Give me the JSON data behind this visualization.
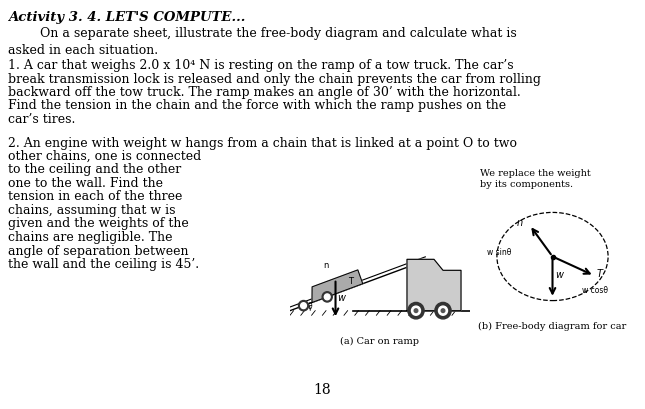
{
  "bg_color": "#f5f5f0",
  "content_bg": "#ffffff",
  "title_bold": "Activity 3. 4. LET'S COMPUTE...",
  "intro": "        On a separate sheet, illustrate the free-body diagram and calculate what is\nasked in each situation.",
  "problem1_line1": "1. A car that weighs 2.0 x 10⁴ N is resting on the ramp of a tow truck. The car’s",
  "problem1_line2": "break transmission lock is released and only the chain prevents the car from rolling",
  "problem1_line3": "backward off the tow truck. The ramp makes an angle of 30’ with the horizontal.",
  "problem1_line4": "Find the tension in the chain and the force with which the ramp pushes on the",
  "problem1_line5": "car’s tires.",
  "problem2_line1": "2. An engine with weight w hangs from a chain that is linked at a point O to two",
  "problem2_line2": "other chains, one is connected",
  "problem2_line3": "to the ceiling and the other",
  "problem2_line4": "one to the wall. Find the",
  "problem2_line5": "tension in each of the three",
  "problem2_line6": "chains, assuming that w is",
  "problem2_line7": "given and the weights of the",
  "problem2_line8": "chains are negligible. The",
  "problem2_line9": "angle of separation between",
  "problem2_line10": "the wall and the ceiling is 45’.",
  "caption_a": "(a) Car on ramp",
  "caption_b": "(b) Free-body diagram for car",
  "note_b_line1": "We replace the weight",
  "note_b_line2": "by its components.",
  "page_number": "18",
  "font_family": "DejaVu Serif",
  "title_fontsize": 9.5,
  "body_fontsize": 9.0,
  "small_fontsize": 7.5,
  "caption_fontsize": 7.0
}
